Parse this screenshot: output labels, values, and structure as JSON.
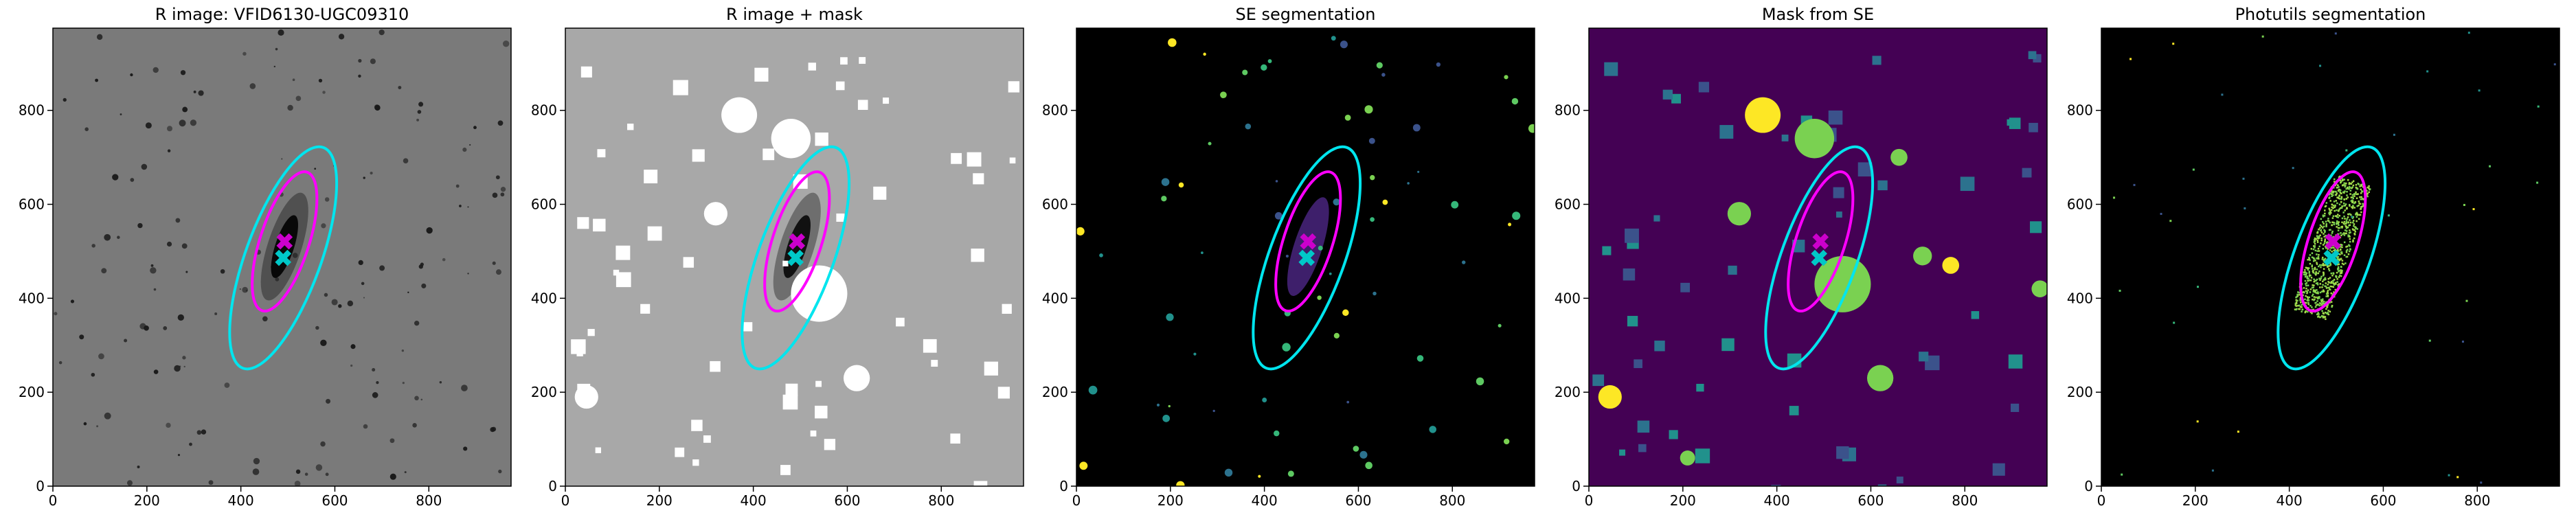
{
  "chart_data": [
    {
      "type": "image",
      "title": "R image: VFID6130-UGC09310",
      "background": "#7a7a7a",
      "style": "raw",
      "xlim": [
        0,
        975
      ],
      "ylim": [
        0,
        975
      ],
      "xticks": [
        0,
        200,
        400,
        600,
        800
      ],
      "yticks": [
        0,
        200,
        400,
        600,
        800
      ],
      "ellipses": [
        {
          "color": "#ff00ff",
          "x": 493,
          "y": 521,
          "a": 155,
          "b": 52,
          "angle": 72
        },
        {
          "color": "#00e5ee",
          "x": 490,
          "y": 486,
          "a": 250,
          "b": 80,
          "angle": 70
        }
      ],
      "markers": [
        {
          "color": "#cc00cc",
          "x": 493,
          "y": 521
        },
        {
          "color": "#00c8c8",
          "x": 490,
          "y": 486
        }
      ]
    },
    {
      "type": "image",
      "title": "R image + mask",
      "background": "#a8a8a8",
      "style": "masked",
      "xlim": [
        0,
        975
      ],
      "ylim": [
        0,
        975
      ],
      "xticks": [
        0,
        200,
        400,
        600,
        800
      ],
      "yticks": [
        0,
        200,
        400,
        600,
        800
      ],
      "ellipses": [
        {
          "color": "#ff00ff",
          "x": 493,
          "y": 521,
          "a": 155,
          "b": 52,
          "angle": 72
        },
        {
          "color": "#00e5ee",
          "x": 490,
          "y": 486,
          "a": 250,
          "b": 80,
          "angle": 70
        }
      ],
      "markers": [
        {
          "color": "#cc00cc",
          "x": 493,
          "y": 521
        },
        {
          "color": "#00c8c8",
          "x": 490,
          "y": 486
        }
      ]
    },
    {
      "type": "image",
      "title": "SE segmentation",
      "background": "#000000",
      "style": "segmentation",
      "xlim": [
        0,
        975
      ],
      "ylim": [
        0,
        975
      ],
      "xticks": [
        0,
        200,
        400,
        600,
        800
      ],
      "yticks": [
        0,
        200,
        400,
        600,
        800
      ],
      "ellipses": [
        {
          "color": "#ff00ff",
          "x": 493,
          "y": 521,
          "a": 155,
          "b": 52,
          "angle": 72
        },
        {
          "color": "#00e5ee",
          "x": 490,
          "y": 486,
          "a": 250,
          "b": 80,
          "angle": 70
        }
      ],
      "markers": [
        {
          "color": "#cc00cc",
          "x": 493,
          "y": 521
        },
        {
          "color": "#00c8c8",
          "x": 490,
          "y": 486
        }
      ]
    },
    {
      "type": "image",
      "title": "Mask from SE",
      "background": "#440154",
      "style": "mask",
      "xlim": [
        0,
        975
      ],
      "ylim": [
        0,
        975
      ],
      "xticks": [
        0,
        200,
        400,
        600,
        800
      ],
      "yticks": [
        0,
        200,
        400,
        600,
        800
      ],
      "ellipses": [
        {
          "color": "#ff00ff",
          "x": 493,
          "y": 521,
          "a": 155,
          "b": 52,
          "angle": 72
        },
        {
          "color": "#00e5ee",
          "x": 490,
          "y": 486,
          "a": 250,
          "b": 80,
          "angle": 70
        }
      ],
      "markers": [
        {
          "color": "#cc00cc",
          "x": 493,
          "y": 521
        },
        {
          "color": "#00c8c8",
          "x": 490,
          "y": 486
        }
      ]
    },
    {
      "type": "image",
      "title": "Photutils segmentation",
      "background": "#000000",
      "style": "photutils",
      "xlim": [
        0,
        975
      ],
      "ylim": [
        0,
        975
      ],
      "xticks": [
        0,
        200,
        400,
        600,
        800
      ],
      "yticks": [
        0,
        200,
        400,
        600,
        800
      ],
      "ellipses": [
        {
          "color": "#ff00ff",
          "x": 493,
          "y": 521,
          "a": 155,
          "b": 52,
          "angle": 72
        },
        {
          "color": "#00e5ee",
          "x": 490,
          "y": 486,
          "a": 250,
          "b": 80,
          "angle": 70
        }
      ],
      "markers": [
        {
          "color": "#cc00cc",
          "x": 493,
          "y": 521
        },
        {
          "color": "#00c8c8",
          "x": 490,
          "y": 486
        }
      ]
    }
  ]
}
